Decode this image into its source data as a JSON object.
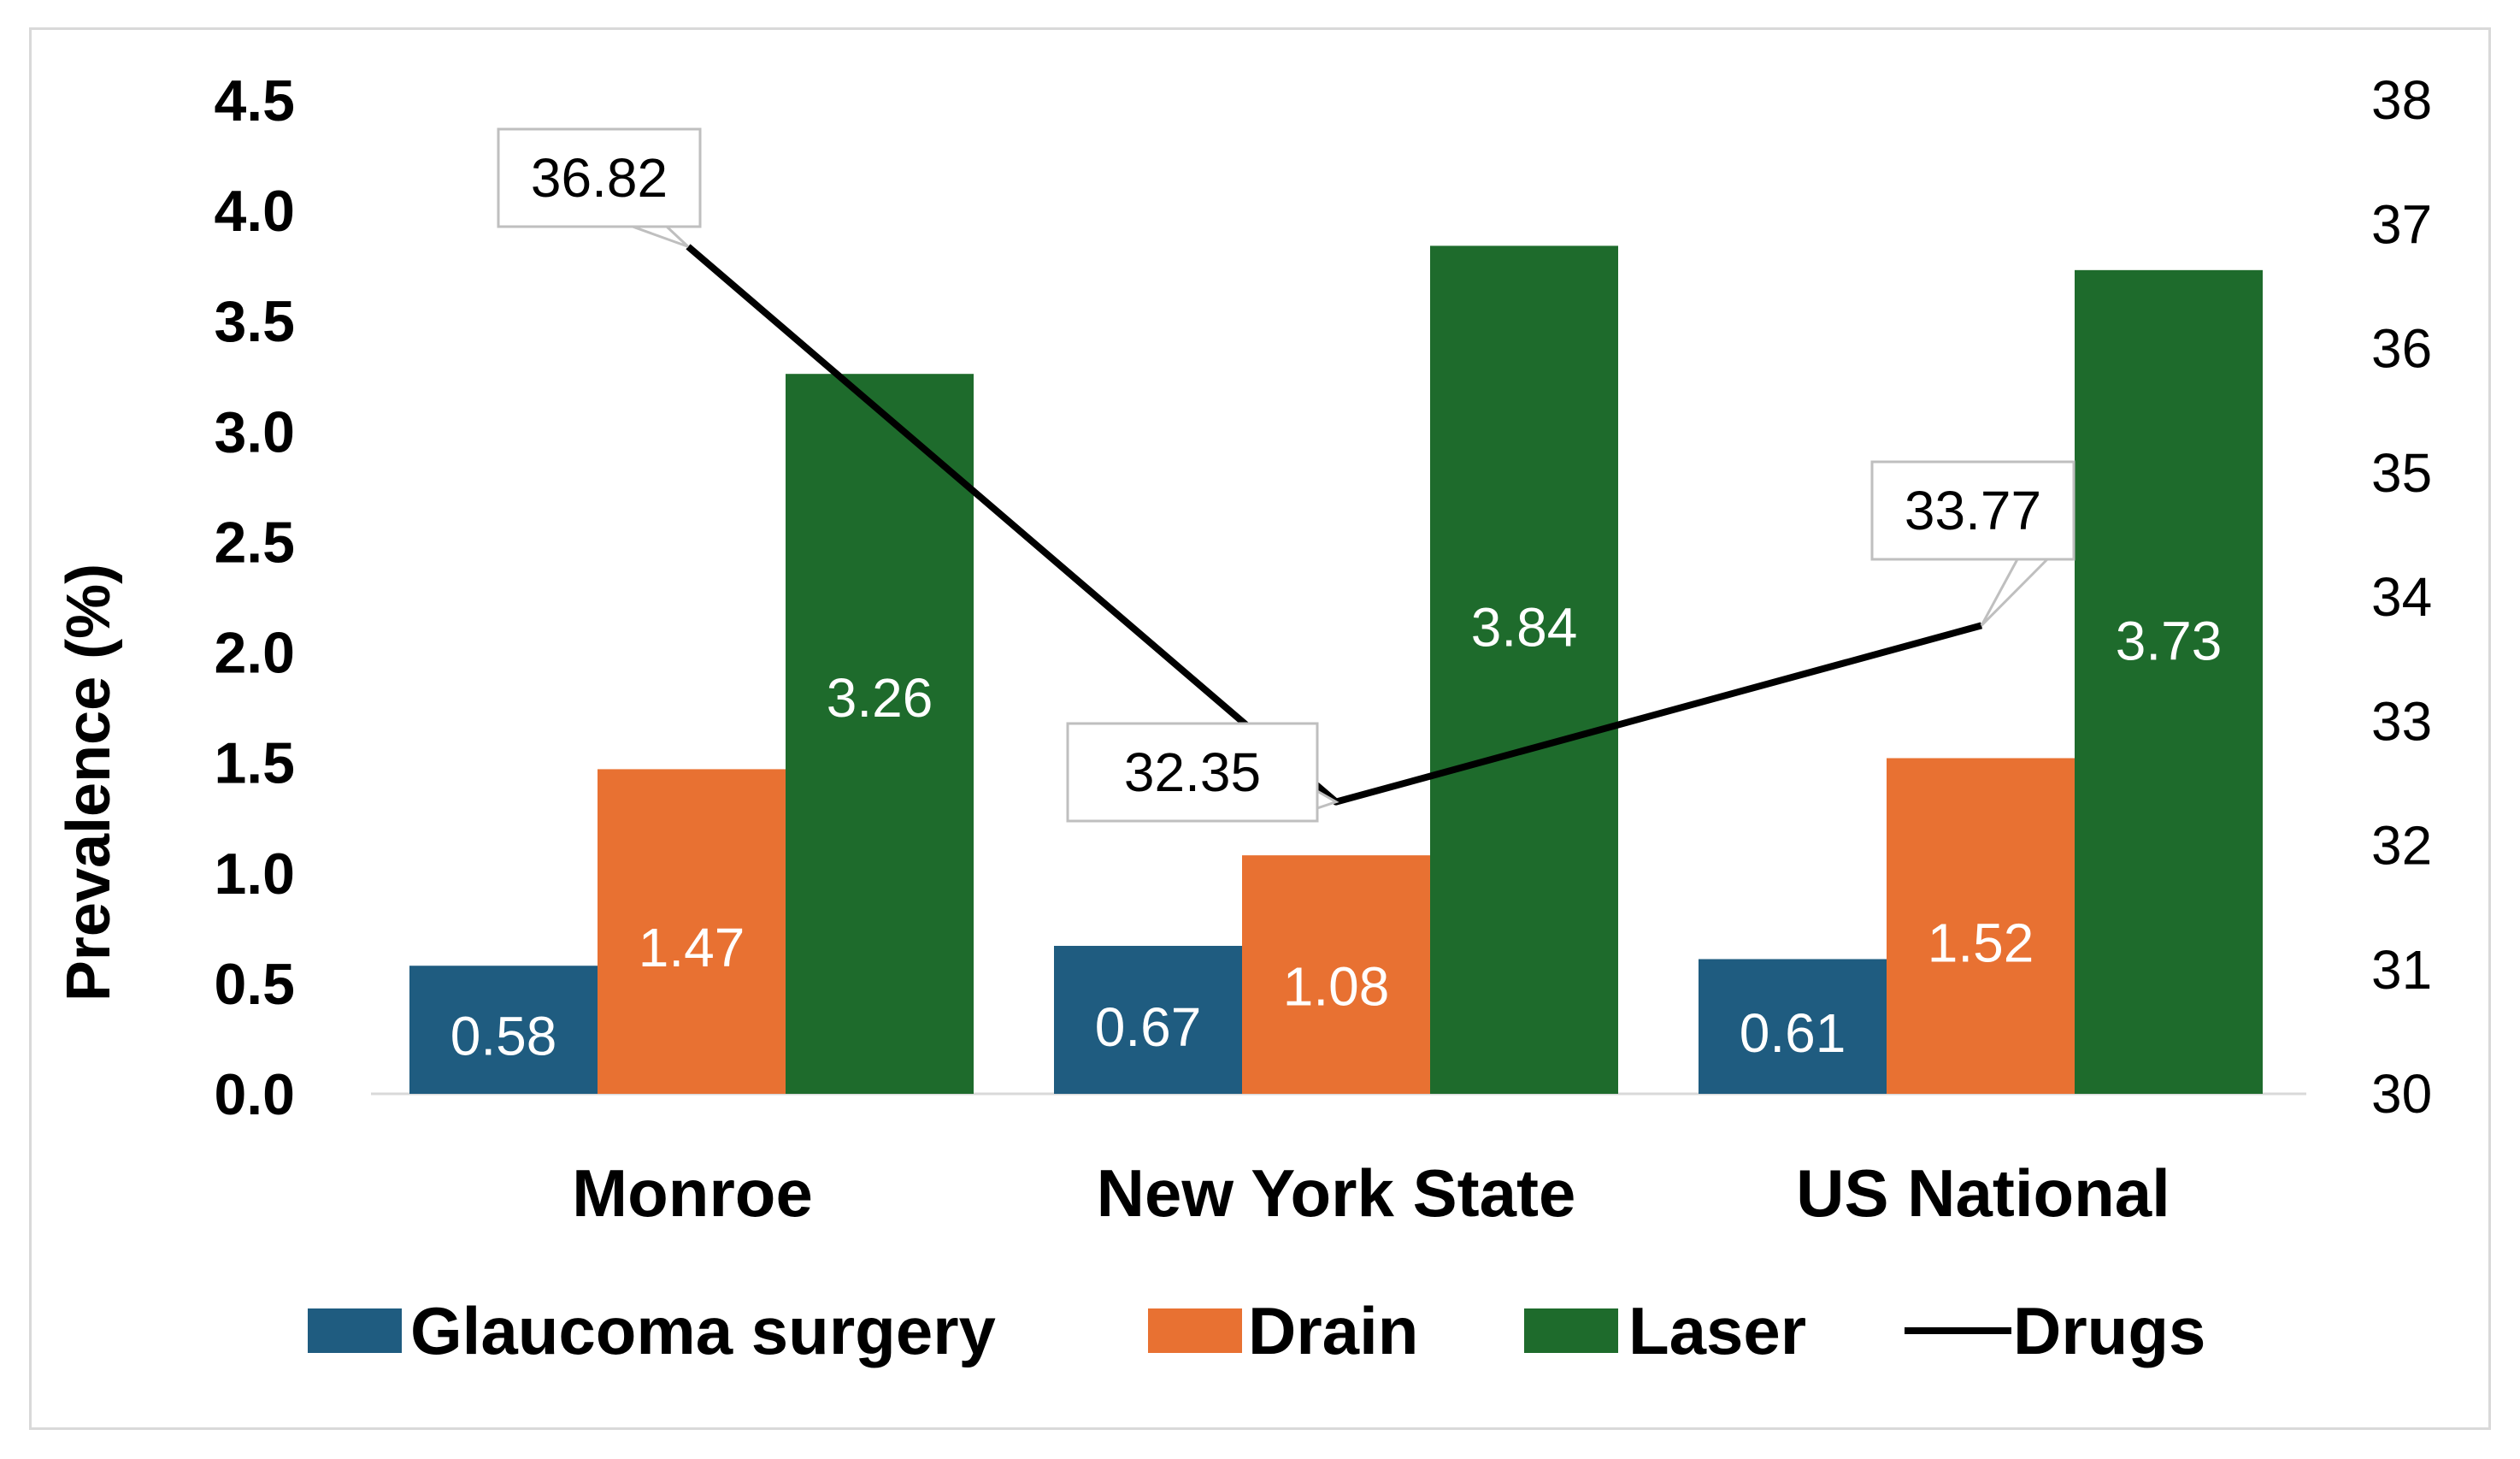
{
  "chart_data": {
    "type": "bar",
    "categories": [
      "Monroe",
      "New York State",
      "US National"
    ],
    "ylabel": "Prevalence (%)",
    "ylim": [
      0,
      4.5
    ],
    "yticks": [
      "0.0",
      "0.5",
      "1.0",
      "1.5",
      "2.0",
      "2.5",
      "3.0",
      "3.5",
      "4.0",
      "4.5"
    ],
    "y2lim": [
      30,
      38
    ],
    "y2ticks": [
      "30",
      "31",
      "32",
      "33",
      "34",
      "35",
      "36",
      "37",
      "38"
    ],
    "series": [
      {
        "name": "Glaucoma surgery",
        "kind": "bar",
        "axis": "left",
        "color": "#1f5c80",
        "values": [
          0.58,
          0.67,
          0.61
        ],
        "labels": [
          "0.58",
          "0.67",
          "0.61"
        ]
      },
      {
        "name": "Drain",
        "kind": "bar",
        "axis": "left",
        "color": "#e87132",
        "values": [
          1.47,
          1.08,
          1.52
        ],
        "labels": [
          "1.47",
          "1.08",
          "1.52"
        ]
      },
      {
        "name": "Laser",
        "kind": "bar",
        "axis": "left",
        "color": "#1e6b2c",
        "values": [
          3.26,
          3.84,
          3.73
        ],
        "labels": [
          "3.26",
          "3.84",
          "3.73"
        ]
      },
      {
        "name": "Drugs",
        "kind": "line",
        "axis": "right",
        "color": "#000000",
        "values": [
          36.82,
          32.35,
          33.77
        ],
        "labels": [
          "36.82",
          "32.35",
          "33.77"
        ]
      }
    ],
    "legend_position": "bottom"
  }
}
